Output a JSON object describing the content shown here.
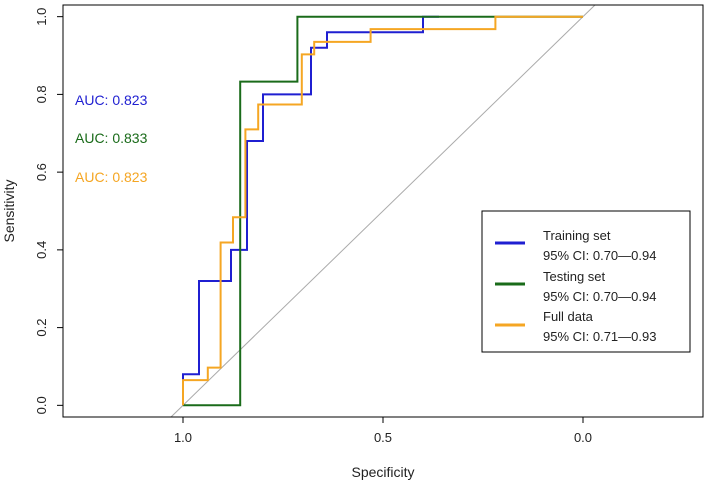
{
  "chart_data": {
    "type": "line",
    "title": "",
    "xlabel": "Specificity",
    "ylabel": "Sensitivity",
    "xlim": [
      1.3,
      -0.3
    ],
    "ylim": [
      -0.03,
      1.03
    ],
    "x_ticks": [
      1.0,
      0.5,
      0.0
    ],
    "x_tick_labels": [
      "1.0",
      "0.5",
      "0.0"
    ],
    "y_ticks": [
      0.0,
      0.2,
      0.4,
      0.6,
      0.8,
      1.0
    ],
    "y_tick_labels": [
      "0.0",
      "0.2",
      "0.4",
      "0.6",
      "0.8",
      "1.0"
    ],
    "grid": false,
    "reference_line": {
      "from": [
        1.0,
        0.0
      ],
      "to": [
        0.0,
        1.0
      ],
      "color": "#aaaaaa"
    },
    "legend_position": "bottom-right",
    "series": [
      {
        "name": "Training set",
        "ci": "95% CI: 0.70—0.94",
        "auc_label": "AUC: 0.823",
        "color": "#1f1fd1",
        "specificity": [
          1.0,
          1.0,
          0.96,
          0.96,
          0.88,
          0.88,
          0.84,
          0.84,
          0.8,
          0.8,
          0.68,
          0.68,
          0.64,
          0.64,
          0.4,
          0.4,
          0.36,
          0.36
        ],
        "sensitivity": [
          0.0,
          0.08,
          0.08,
          0.32,
          0.32,
          0.4,
          0.4,
          0.68,
          0.68,
          0.8,
          0.8,
          0.92,
          0.92,
          0.96,
          0.96,
          1.0,
          1.0,
          1.0
        ]
      },
      {
        "name": "Testing set",
        "ci": "95% CI: 0.70—0.94",
        "auc_label": "AUC: 0.833",
        "color": "#1a6b1a",
        "specificity": [
          1.0,
          0.857,
          0.857,
          0.714,
          0.714,
          0.0
        ],
        "sensitivity": [
          0.0,
          0.0,
          0.833,
          0.833,
          1.0,
          1.0
        ]
      },
      {
        "name": "Full data",
        "ci": "95% CI: 0.71—0.93",
        "auc_label": "AUC: 0.823",
        "color": "#f5a623",
        "specificity": [
          1.0,
          1.0,
          0.938,
          0.938,
          0.906,
          0.906,
          0.875,
          0.875,
          0.844,
          0.844,
          0.812,
          0.812,
          0.781,
          0.781,
          0.703,
          0.703,
          0.672,
          0.672,
          0.641,
          0.641,
          0.531,
          0.531,
          0.219,
          0.219,
          0.0
        ],
        "sensitivity": [
          0.0,
          0.065,
          0.065,
          0.097,
          0.097,
          0.419,
          0.419,
          0.484,
          0.484,
          0.71,
          0.71,
          0.774,
          0.774,
          0.774,
          0.774,
          0.903,
          0.903,
          0.935,
          0.935,
          0.935,
          0.935,
          0.968,
          0.968,
          1.0,
          1.0
        ]
      }
    ]
  }
}
